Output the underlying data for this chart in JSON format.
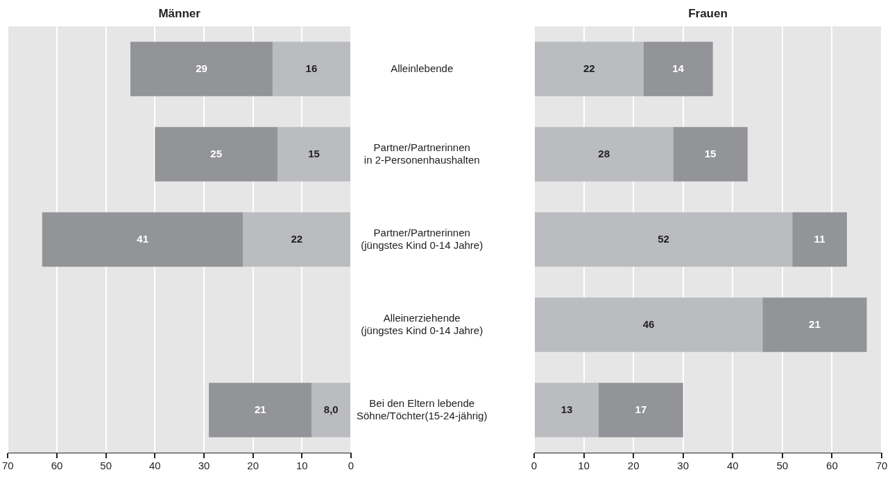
{
  "chart_data": [
    {
      "type": "bar",
      "title": "Männer",
      "orientation": "horizontal",
      "stacked": true,
      "grid": "x",
      "categories": [
        "Alleinlebende",
        "Partner/Partnerinnen\nin 2-Personenhaushalten",
        "Partner/Partnerinnen\n(jüngstes Kind 0-14 Jahre)",
        "Alleinerziehende\n(jüngstes Kind 0-14 Jahre)",
        "Bei den Eltern lebende\nSöhne/Töchter(15-24-jährig)"
      ],
      "series": [
        {
          "color": "#bbbcbf",
          "values": [
            16,
            15,
            22,
            null,
            8.0
          ],
          "value_labels": [
            "16",
            "15",
            "22",
            null,
            "8,0"
          ]
        },
        {
          "color": "#939497",
          "values": [
            29,
            25,
            41,
            null,
            21
          ],
          "value_labels": [
            "29",
            "25",
            "41",
            null,
            "21"
          ]
        }
      ],
      "xlim": [
        70,
        0
      ],
      "xticks": [
        70,
        60,
        50,
        40,
        30,
        20,
        10,
        0
      ]
    },
    {
      "type": "bar",
      "title": "Frauen",
      "orientation": "horizontal",
      "stacked": true,
      "grid": "x",
      "tick_labels": "x",
      "categories": [
        null,
        null,
        null,
        null,
        null
      ],
      "series": [
        {
          "color": "#bbbcbf",
          "values": [
            22,
            28,
            52,
            46,
            13
          ],
          "value_labels": [
            "22",
            "28",
            "52",
            "46",
            "13"
          ]
        },
        {
          "color": "#939497",
          "values": [
            14,
            15,
            11,
            21,
            17
          ],
          "value_labels": [
            "14",
            "15",
            "11",
            "21",
            "17"
          ]
        }
      ],
      "xlim": [
        0,
        70
      ],
      "xticks": [
        0,
        10,
        20,
        30,
        40,
        50,
        60,
        70
      ]
    }
  ]
}
